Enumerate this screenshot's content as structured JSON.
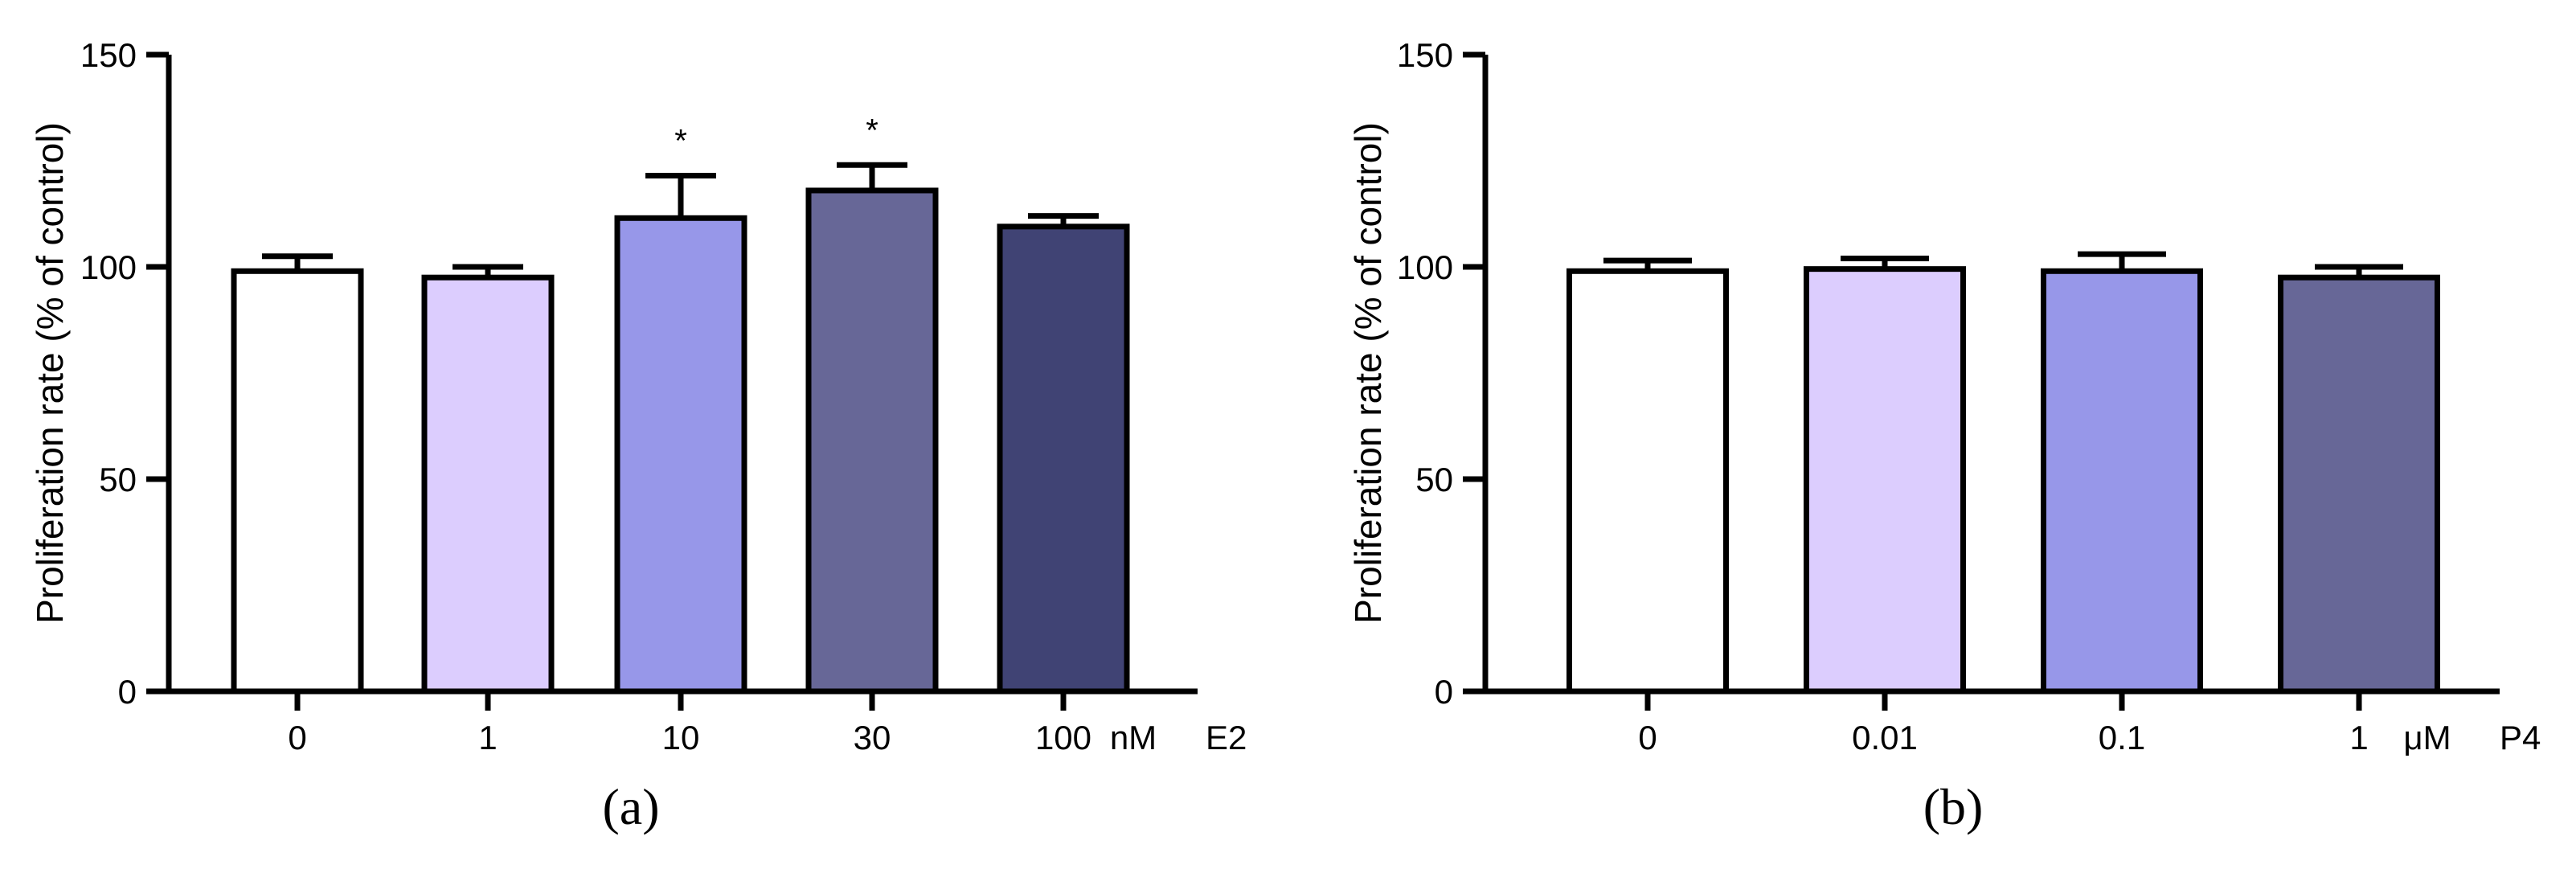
{
  "chart_data": [
    {
      "panel": "a",
      "type": "bar",
      "ylabel": "Proliferation rate (% of control)",
      "ylim": [
        0,
        150
      ],
      "yticks": [
        0,
        50,
        100,
        150
      ],
      "categories": [
        "0",
        "1",
        "10",
        "30",
        "100"
      ],
      "unit_label": "nM",
      "treatment_label": "E2",
      "values": [
        99,
        97.5,
        111.5,
        118,
        109.5
      ],
      "errors": [
        3.5,
        2.5,
        10,
        6,
        2.5
      ],
      "significance": [
        "",
        "",
        "*",
        "*",
        ""
      ],
      "colors": [
        "#ffffff",
        "#dccdfe",
        "#9797e9",
        "#676797",
        "#404374"
      ],
      "grid": false,
      "legend": "none"
    },
    {
      "panel": "b",
      "type": "bar",
      "ylabel": "Proliferation rate (% of control)",
      "ylim": [
        0,
        150
      ],
      "yticks": [
        0,
        50,
        100,
        150
      ],
      "categories": [
        "0",
        "0.01",
        "0.1",
        "1"
      ],
      "unit_label": "μM",
      "treatment_label": "P4",
      "values": [
        99,
        99.5,
        99,
        97.5
      ],
      "errors": [
        2.5,
        2.5,
        4,
        2.5
      ],
      "significance": [
        "",
        "",
        "",
        ""
      ],
      "colors": [
        "#ffffff",
        "#dccdfe",
        "#9797e9",
        "#676797"
      ],
      "grid": false,
      "legend": "none"
    }
  ],
  "panel_labels": [
    "(a)",
    "(b)"
  ]
}
